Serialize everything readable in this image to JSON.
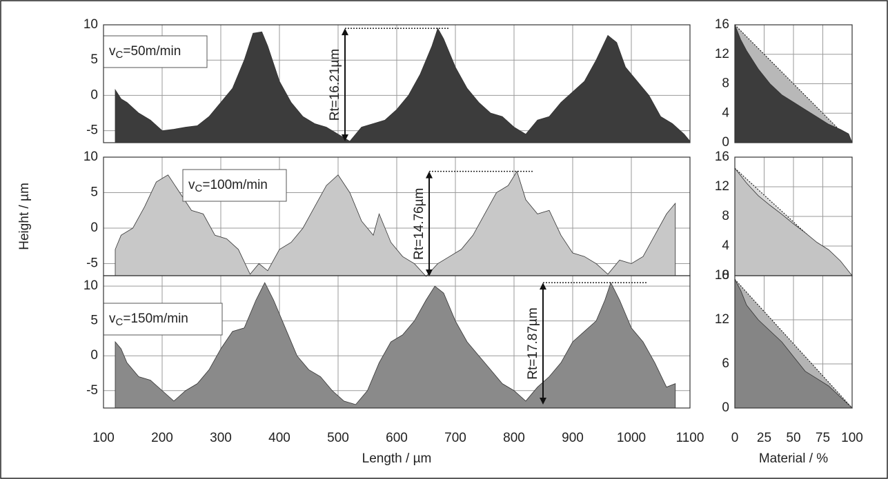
{
  "chart_data": [
    {
      "type": "area",
      "color": "#3c3c3c",
      "ylabel": "Height / µm",
      "annotation": [
        "v",
        "C",
        "=50m/min"
      ],
      "rt_label": "Rt=16.21µm",
      "xlim": [
        100,
        1100
      ],
      "ylim": [
        -6.7,
        10
      ],
      "xticks": [
        100,
        200,
        300,
        400,
        500,
        600,
        700,
        800,
        900,
        1000,
        1100
      ],
      "yticks": [
        -5,
        0,
        5,
        10
      ],
      "x": [
        120,
        130,
        140,
        160,
        180,
        200,
        220,
        240,
        260,
        280,
        300,
        320,
        340,
        355,
        370,
        380,
        400,
        420,
        440,
        460,
        480,
        500,
        520,
        540,
        560,
        580,
        600,
        620,
        640,
        660,
        670,
        680,
        700,
        720,
        740,
        760,
        780,
        800,
        820,
        840,
        860,
        880,
        900,
        920,
        940,
        960,
        975,
        990,
        1010,
        1030,
        1050,
        1070,
        1090,
        1100
      ],
      "values": [
        0.8,
        -0.5,
        -1,
        -2.5,
        -3.5,
        -5,
        -4.8,
        -4.5,
        -4.3,
        -3,
        -1,
        1,
        5,
        8.8,
        9,
        7,
        2,
        -1,
        -3,
        -4,
        -4.5,
        -5.5,
        -6.5,
        -4.5,
        -4,
        -3.5,
        -2,
        0,
        3,
        7,
        9.5,
        8,
        4,
        1,
        -1,
        -2.5,
        -3,
        -4.5,
        -5.5,
        -3.5,
        -3,
        -1,
        0.5,
        2,
        5,
        8.5,
        7.5,
        4,
        2,
        0,
        -3,
        -4,
        -5.5,
        -6.5
      ]
    },
    {
      "type": "area",
      "color": "#c8c8c8",
      "annotation": [
        "v",
        "C",
        "=100m/min"
      ],
      "rt_label": "Rt=14.76µm",
      "xlim": [
        100,
        1100
      ],
      "ylim": [
        -6.7,
        10
      ],
      "xticks": [
        100,
        200,
        300,
        400,
        500,
        600,
        700,
        800,
        900,
        1000,
        1100
      ],
      "yticks": [
        -5,
        0,
        5,
        10
      ],
      "x": [
        120,
        130,
        150,
        170,
        190,
        210,
        230,
        250,
        270,
        290,
        310,
        330,
        350,
        365,
        380,
        400,
        420,
        440,
        460,
        480,
        500,
        520,
        540,
        560,
        570,
        590,
        610,
        630,
        650,
        670,
        690,
        710,
        730,
        750,
        770,
        790,
        805,
        820,
        840,
        860,
        880,
        900,
        920,
        940,
        960,
        980,
        1000,
        1020,
        1040,
        1060,
        1075
      ],
      "values": [
        -3,
        -1,
        0,
        3,
        6.5,
        7.5,
        5,
        2.5,
        2,
        -1,
        -1.5,
        -3,
        -6.5,
        -5,
        -6,
        -3,
        -2,
        0,
        3,
        6,
        7.5,
        5,
        1,
        -1,
        2,
        -2,
        -4,
        -5,
        -6.8,
        -5,
        -4,
        -3,
        -1,
        2,
        5,
        6,
        8,
        4,
        2,
        2.5,
        -1,
        -3.5,
        -4,
        -5,
        -6.5,
        -4.5,
        -5,
        -4,
        -1,
        2,
        3.5
      ]
    },
    {
      "type": "area",
      "color": "#8a8a8a",
      "xlabel": "Length / µm",
      "annotation": [
        "v",
        "C",
        "=150m/min"
      ],
      "rt_label": "Rt=17.87µm",
      "xlim": [
        100,
        1100
      ],
      "ylim": [
        -7.5,
        11.5
      ],
      "xticks": [
        100,
        200,
        300,
        400,
        500,
        600,
        700,
        800,
        900,
        1000,
        1100
      ],
      "yticks": [
        -5,
        0,
        5,
        10
      ],
      "x": [
        120,
        130,
        140,
        160,
        180,
        200,
        220,
        240,
        260,
        280,
        300,
        320,
        340,
        360,
        375,
        390,
        410,
        430,
        450,
        470,
        490,
        510,
        530,
        550,
        570,
        590,
        610,
        630,
        650,
        665,
        680,
        700,
        720,
        740,
        760,
        780,
        800,
        820,
        840,
        860,
        880,
        900,
        920,
        940,
        955,
        965,
        980,
        1000,
        1020,
        1040,
        1060,
        1075
      ],
      "values": [
        2,
        1,
        -1,
        -3,
        -3.5,
        -5,
        -6.5,
        -5,
        -4,
        -2,
        1,
        3.5,
        4,
        8,
        10.5,
        8,
        4,
        0,
        -2,
        -3,
        -5,
        -6.5,
        -7,
        -5,
        -1,
        2,
        3,
        5,
        8,
        10,
        9,
        5,
        2,
        0,
        -2,
        -4,
        -5,
        -6.5,
        -4.5,
        -3,
        -1,
        2,
        3.5,
        5,
        8,
        10.5,
        8,
        4,
        2,
        -1,
        -4.5,
        -4
      ]
    },
    {
      "type": "abbott",
      "xlim": [
        0,
        100
      ],
      "ylim": [
        0,
        16
      ],
      "xticks": [
        0,
        25,
        50,
        75,
        100
      ],
      "yticks": [
        0,
        4,
        8,
        12,
        16
      ],
      "series": [
        {
          "color": "#b8b8b8",
          "dashed": true,
          "x": [
            0,
            100
          ],
          "values": [
            16,
            0
          ]
        },
        {
          "color": "#3c3c3c",
          "x": [
            0,
            5,
            10,
            20,
            30,
            40,
            50,
            60,
            70,
            80,
            90,
            97,
            100
          ],
          "values": [
            16,
            14,
            12.5,
            10,
            8,
            6.5,
            5.5,
            4.5,
            3.5,
            2.5,
            1.8,
            1.2,
            0
          ]
        }
      ]
    },
    {
      "type": "abbott",
      "xlim": [
        0,
        100
      ],
      "ylim": [
        0,
        16
      ],
      "xticks": [
        0,
        25,
        50,
        75,
        100
      ],
      "yticks": [
        0,
        4,
        8,
        12,
        16
      ],
      "series": [
        {
          "color": "#dadada",
          "dashed": true,
          "x": [
            0,
            100
          ],
          "values": [
            14.5,
            0
          ]
        },
        {
          "color": "#c4c4c4",
          "x": [
            0,
            10,
            20,
            30,
            40,
            50,
            60,
            70,
            80,
            90,
            100
          ],
          "values": [
            14.5,
            12.5,
            10.8,
            9.5,
            8.3,
            7,
            5.8,
            4.5,
            3.5,
            2,
            0
          ]
        }
      ]
    },
    {
      "type": "abbott",
      "xlabel": "Material / %",
      "xlim": [
        0,
        100
      ],
      "ylim": [
        0,
        18
      ],
      "xticks": [
        0,
        25,
        50,
        75,
        100
      ],
      "yticks": [
        0,
        6,
        12,
        18
      ],
      "series": [
        {
          "color": "#b4b4b4",
          "dashed": true,
          "x": [
            0,
            100
          ],
          "values": [
            17.5,
            0
          ]
        },
        {
          "color": "#858585",
          "x": [
            0,
            5,
            10,
            20,
            30,
            40,
            50,
            60,
            70,
            80,
            90,
            100
          ],
          "values": [
            17.5,
            16,
            14,
            12,
            10.5,
            9,
            7,
            5,
            4,
            3,
            1.5,
            0
          ]
        }
      ]
    }
  ]
}
